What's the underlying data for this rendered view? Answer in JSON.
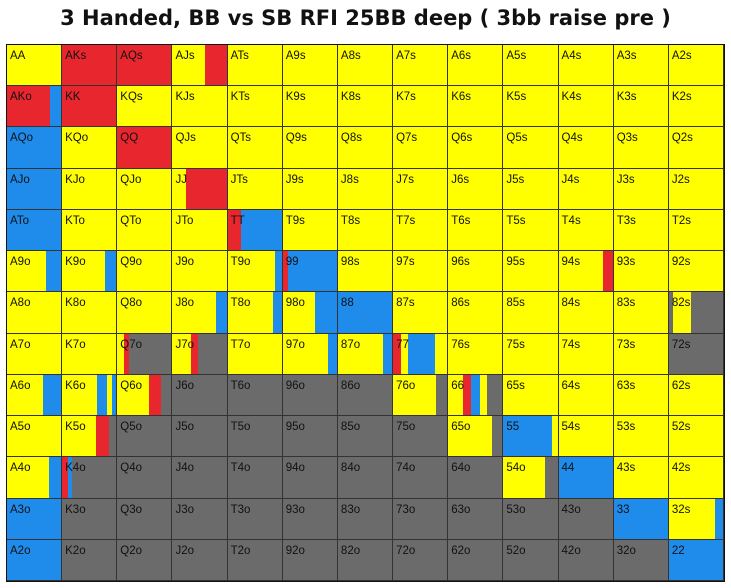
{
  "title": "3 Handed, BB vs SB RFI 25BB deep ( 3bb raise pre )",
  "colors": {
    "yellow": "#ffff00",
    "red": "#e8262e",
    "blue": "#1f8ceb",
    "gray": "#6b6b6b"
  },
  "chart_data": {
    "type": "heatmap",
    "title": "3 Handed, BB vs SB RFI 25BB deep ( 3bb raise pre )",
    "rank_order": [
      "A",
      "K",
      "Q",
      "J",
      "T",
      "9",
      "8",
      "7",
      "6",
      "5",
      "4",
      "3",
      "2"
    ],
    "color_codes": {
      "Y": "yellow",
      "R": "red",
      "B": "blue",
      "G": "gray"
    },
    "rows": [
      {
        "hands": [
          "AA",
          "AKs",
          "AQs",
          "AJs",
          "ATs",
          "A9s",
          "A8s",
          "A7s",
          "A6s",
          "A5s",
          "A4s",
          "A3s",
          "A2s"
        ],
        "mix": [
          "Y",
          "R",
          "R",
          "Y:0.6 R:0.4",
          "Y",
          "Y",
          "Y",
          "Y",
          "Y",
          "Y",
          "Y",
          "Y",
          "Y"
        ]
      },
      {
        "hands": [
          "AKo",
          "KK",
          "KQs",
          "KJs",
          "KTs",
          "K9s",
          "K8s",
          "K7s",
          "K6s",
          "K5s",
          "K4s",
          "K3s",
          "K2s"
        ],
        "mix": [
          "R:0.8 B:0.2",
          "R",
          "Y",
          "Y",
          "Y",
          "Y",
          "Y",
          "Y",
          "Y",
          "Y",
          "Y",
          "Y",
          "Y"
        ]
      },
      {
        "hands": [
          "AQo",
          "KQo",
          "QQ",
          "QJs",
          "QTs",
          "Q9s",
          "Q8s",
          "Q7s",
          "Q6s",
          "Q5s",
          "Q4s",
          "Q3s",
          "Q2s"
        ],
        "mix": [
          "B",
          "Y",
          "R",
          "Y",
          "Y",
          "Y",
          "Y",
          "Y",
          "Y",
          "Y",
          "Y",
          "Y",
          "Y"
        ]
      },
      {
        "hands": [
          "AJo",
          "KJo",
          "QJo",
          "JJ",
          "JTs",
          "J9s",
          "J8s",
          "J7s",
          "J6s",
          "J5s",
          "J4s",
          "J3s",
          "J2s"
        ],
        "mix": [
          "B",
          "Y",
          "Y",
          "Y:0.25 R:0.75",
          "Y",
          "Y",
          "Y",
          "Y",
          "Y",
          "Y",
          "Y",
          "Y",
          "Y"
        ]
      },
      {
        "hands": [
          "ATo",
          "KTo",
          "QTo",
          "JTo",
          "TT",
          "T9s",
          "T8s",
          "T7s",
          "T6s",
          "T5s",
          "T4s",
          "T3s",
          "T2s"
        ],
        "mix": [
          "B",
          "Y",
          "Y",
          "Y",
          "R:0.25 B:0.75",
          "Y",
          "Y",
          "Y",
          "Y",
          "Y",
          "Y",
          "Y",
          "Y"
        ]
      },
      {
        "hands": [
          "A9o",
          "K9o",
          "Q9o",
          "J9o",
          "T9o",
          "99",
          "98s",
          "97s",
          "96s",
          "95s",
          "94s",
          "93s",
          "92s"
        ],
        "mix": [
          "Y:0.72 B:0.28",
          "Y:0.8 B:0.2",
          "Y",
          "Y",
          "Y:0.88 B:0.12",
          "R:0.1 B:0.9",
          "Y",
          "Y",
          "Y",
          "Y",
          "Y:0.82 R:0.18",
          "Y",
          "Y"
        ]
      },
      {
        "hands": [
          "A8o",
          "K8o",
          "Q8o",
          "J8o",
          "T8o",
          "98o",
          "88",
          "87s",
          "86s",
          "85s",
          "84s",
          "83s",
          "82s"
        ],
        "mix": [
          "Y",
          "Y",
          "Y",
          "Y:0.8 B:0.2",
          "Y:0.84 B:0.16",
          "Y:0.6 B:0.4",
          "B",
          "Y",
          "Y",
          "Y",
          "Y",
          "Y",
          "G:0.08 Y:0.32 G:0.6"
        ]
      },
      {
        "hands": [
          "A7o",
          "K7o",
          "Q7o",
          "J7o",
          "T7o",
          "97o",
          "87o",
          "77",
          "76s",
          "75s",
          "74s",
          "73s",
          "72s"
        ],
        "mix": [
          "Y",
          "Y",
          "Y:0.12 R:0.1 G:0.78",
          "Y:0.34 R:0.14 G:0.52",
          "Y",
          "Y:0.84 B:0.16",
          "Y:0.84 B:0.16",
          "R:0.14 Y:0.14 B:0.5 Y:0.22",
          "Y",
          "Y",
          "Y",
          "Y",
          "G"
        ]
      },
      {
        "hands": [
          "A6o",
          "K6o",
          "Q6o",
          "J6o",
          "T6o",
          "96o",
          "86o",
          "76o",
          "66",
          "65s",
          "64s",
          "63s",
          "62s"
        ],
        "mix": [
          "Y:0.66 B:0.34",
          "Y:0.64 B:0.18 Y:0.1 B:0.08",
          "Y:0.58 R:0.22 G:0.2",
          "G",
          "G",
          "G",
          "G",
          "Y:0.8 G:0.2",
          "Y:0.28 R:0.14 B:0.16 Y:0.14 G:0.28",
          "Y",
          "Y",
          "Y",
          "Y"
        ]
      },
      {
        "hands": [
          "A5o",
          "K5o",
          "Q5o",
          "J5o",
          "T5o",
          "95o",
          "85o",
          "75o",
          "65o",
          "55",
          "54s",
          "53s",
          "52s"
        ],
        "mix": [
          "Y",
          "Y:0.62 R:0.24 G:0.14",
          "G",
          "G",
          "G",
          "G",
          "G",
          "G",
          "Y:0.8 G:0.2",
          "B:0.9 Y:0.1",
          "Y",
          "Y",
          "Y"
        ]
      },
      {
        "hands": [
          "A4o",
          "K4o",
          "Q4o",
          "J4o",
          "T4o",
          "94o",
          "84o",
          "74o",
          "64o",
          "54o",
          "44",
          "43s",
          "42s"
        ],
        "mix": [
          "Y:0.78 B:0.22",
          "R:0.1 B:0.08 G:0.82",
          "G",
          "G",
          "G",
          "G",
          "G",
          "G",
          "G",
          "Y:0.76 G:0.24",
          "B",
          "Y",
          "Y"
        ]
      },
      {
        "hands": [
          "A3o",
          "K3o",
          "Q3o",
          "J3o",
          "T3o",
          "93o",
          "83o",
          "73o",
          "63o",
          "53o",
          "43o",
          "33",
          "32s"
        ],
        "mix": [
          "B",
          "G",
          "G",
          "G",
          "G",
          "G",
          "G",
          "G",
          "G",
          "G",
          "G",
          "B",
          "Y:0.85 B:0.15"
        ]
      },
      {
        "hands": [
          "A2o",
          "K2o",
          "Q2o",
          "J2o",
          "T2o",
          "92o",
          "82o",
          "72o",
          "62o",
          "52o",
          "42o",
          "32o",
          "22"
        ],
        "mix": [
          "B",
          "G",
          "G",
          "G",
          "G",
          "G",
          "G",
          "G",
          "G",
          "G",
          "G",
          "G",
          "B"
        ]
      }
    ]
  }
}
